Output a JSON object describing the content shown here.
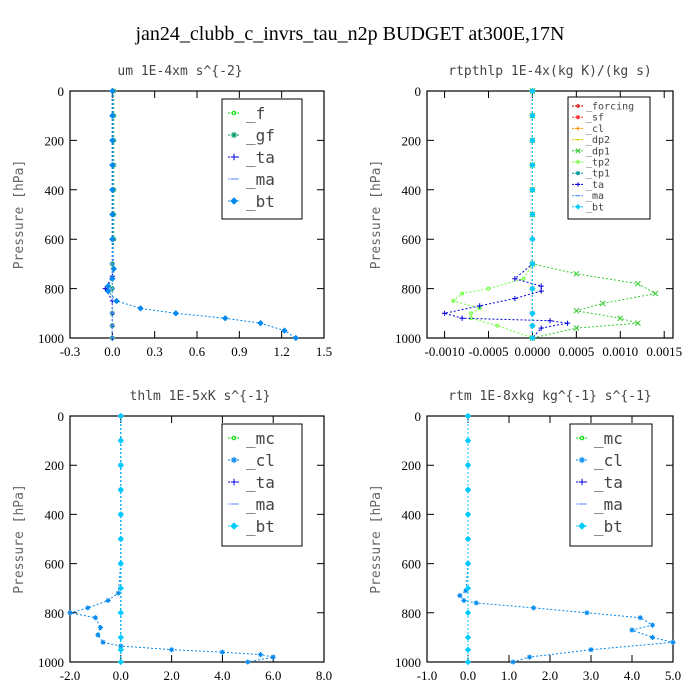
{
  "suptitle": "jan24_clubb_c_invrs_tau_n2p  BUDGET at300E,17N",
  "chart_data": [
    {
      "type": "line",
      "title": "um  1E-4xm s^{-2}",
      "ylabel": "Pressure [hPa]",
      "xlim": [
        -0.3,
        1.5
      ],
      "xticks": [
        -0.3,
        0.0,
        0.3,
        0.6,
        0.9,
        1.2,
        1.5
      ],
      "xtick_labels": [
        "-0.3",
        "0.0",
        "0.3",
        "0.6",
        "0.9",
        "1.2",
        "1.5"
      ],
      "ylim": [
        1000,
        0
      ],
      "yticks": [
        0,
        200,
        400,
        600,
        800,
        1000
      ],
      "legend": "top-right",
      "series": [
        {
          "name": "_f",
          "color": "#00dd00",
          "marker": "circle",
          "x": [
            0,
            0,
            0,
            0,
            0,
            0,
            0,
            0,
            0,
            0,
            0,
            0
          ],
          "y": [
            0,
            100,
            200,
            300,
            400,
            500,
            600,
            700,
            800,
            900,
            950,
            1000
          ]
        },
        {
          "name": "_gf",
          "color": "#009966",
          "marker": "star",
          "x": [
            0.01,
            0.01,
            0.01,
            0.01,
            0.01,
            0.01,
            0.01,
            0.0,
            0.0,
            0.0,
            0.0,
            0.0
          ],
          "y": [
            0,
            100,
            200,
            300,
            400,
            500,
            600,
            700,
            800,
            900,
            950,
            1000
          ]
        },
        {
          "name": "_ta",
          "color": "#0000dd",
          "marker": "plus",
          "x": [
            0,
            0,
            0,
            0,
            0,
            0,
            0,
            0.0,
            -0.05,
            0.0,
            0.0,
            0.0,
            0.0
          ],
          "y": [
            0,
            100,
            200,
            300,
            400,
            500,
            600,
            750,
            800,
            850,
            900,
            950,
            1000
          ]
        },
        {
          "name": "_ma",
          "color": "#6699ff",
          "marker": "dash",
          "x": [
            0,
            0,
            0,
            0,
            0,
            0,
            0,
            0,
            0,
            0,
            0,
            0
          ],
          "y": [
            0,
            100,
            200,
            300,
            400,
            500,
            600,
            700,
            800,
            900,
            950,
            1000
          ]
        },
        {
          "name": "_bt",
          "color": "#0088ee",
          "marker": "diamond",
          "x": [
            0.0,
            0.0,
            0.0,
            0.0,
            0.0,
            0.0,
            0.0,
            0.01,
            0.0,
            -0.03,
            -0.03,
            0.03,
            0.2,
            0.45,
            0.8,
            1.05,
            1.22,
            1.3
          ],
          "y": [
            0,
            100,
            200,
            300,
            400,
            500,
            600,
            720,
            760,
            790,
            810,
            850,
            880,
            900,
            920,
            940,
            970,
            1000
          ]
        }
      ]
    },
    {
      "type": "line",
      "title": "rtpthlp  1E-4x(kg K)/(kg s)",
      "ylabel": "Pressure [hPa]",
      "xlim": [
        -0.0012,
        0.0016
      ],
      "xticks": [
        -0.001,
        -0.0005,
        0.0,
        0.0005,
        0.001,
        0.0015
      ],
      "xtick_labels": [
        "-0.0010",
        "-0.0005",
        "0.0000",
        "0.0005",
        "0.0010",
        "0.0015"
      ],
      "ylim": [
        1000,
        0
      ],
      "yticks": [
        0,
        200,
        400,
        600,
        800,
        1000
      ],
      "legend": "top-right",
      "series": [
        {
          "name": "_forcing",
          "color": "#cc0000",
          "marker": "circle",
          "x": [
            0,
            0,
            0,
            0,
            0,
            0,
            0,
            0,
            0,
            0,
            0,
            0
          ],
          "y": [
            0,
            100,
            200,
            300,
            400,
            500,
            600,
            700,
            800,
            900,
            950,
            1000
          ]
        },
        {
          "name": "_sf",
          "color": "#ff3333",
          "marker": "star",
          "x": [
            0,
            0,
            0,
            0,
            0,
            0,
            0,
            0,
            0,
            0,
            0,
            0
          ],
          "y": [
            0,
            100,
            200,
            300,
            400,
            500,
            600,
            700,
            800,
            900,
            950,
            1000
          ]
        },
        {
          "name": "_cl",
          "color": "#ff9900",
          "marker": "plus",
          "x": [
            0,
            0,
            0,
            0,
            0,
            0,
            0,
            0,
            0,
            0,
            0,
            0
          ],
          "y": [
            0,
            100,
            200,
            300,
            400,
            500,
            600,
            700,
            800,
            900,
            950,
            1000
          ]
        },
        {
          "name": "_dp2",
          "color": "#ddcc00",
          "marker": "dash",
          "x": [
            0,
            0,
            0,
            0,
            0,
            0,
            0,
            0,
            0,
            0,
            0,
            0
          ],
          "y": [
            0,
            100,
            200,
            300,
            400,
            500,
            600,
            700,
            800,
            900,
            950,
            1000
          ]
        },
        {
          "name": "_dp1",
          "color": "#33cc33",
          "marker": "cross",
          "x": [
            0,
            0,
            0,
            0,
            0,
            0,
            0.0,
            0.0005,
            0.0012,
            0.0014,
            0.0008,
            0.0005,
            0.001,
            0.0012,
            0.0005,
            0.0
          ],
          "y": [
            0,
            100,
            200,
            300,
            400,
            500,
            700,
            740,
            780,
            820,
            860,
            890,
            920,
            940,
            960,
            1000
          ]
        },
        {
          "name": "_tp2",
          "color": "#66ff33",
          "marker": "circle",
          "x": [
            0,
            0,
            0,
            0,
            0,
            0,
            0.0,
            -0.0001,
            -0.0005,
            -0.0008,
            -0.0009,
            -0.0006,
            -0.0007,
            -0.0007,
            -0.0004,
            0.0
          ],
          "y": [
            0,
            100,
            200,
            300,
            400,
            500,
            700,
            760,
            800,
            820,
            850,
            880,
            900,
            920,
            950,
            1000
          ]
        },
        {
          "name": "_tp1",
          "color": "#009999",
          "marker": "star",
          "x": [
            0,
            0,
            0,
            0,
            0,
            0,
            0,
            0,
            0,
            0,
            0,
            0
          ],
          "y": [
            0,
            100,
            200,
            300,
            400,
            500,
            600,
            700,
            800,
            900,
            950,
            1000
          ]
        },
        {
          "name": "_ta",
          "color": "#0000dd",
          "marker": "plus",
          "x": [
            0,
            0,
            0,
            0,
            0,
            0,
            0.0,
            -0.0002,
            0.0001,
            0.0001,
            -0.0002,
            -0.0006,
            -0.001,
            -0.0008,
            0.0002,
            0.0004,
            0.0001,
            0.0
          ],
          "y": [
            0,
            100,
            200,
            300,
            400,
            500,
            700,
            760,
            790,
            810,
            840,
            870,
            900,
            920,
            930,
            940,
            960,
            1000
          ]
        },
        {
          "name": "_ma",
          "color": "#6699ff",
          "marker": "dash",
          "x": [
            0,
            0,
            0,
            0,
            0,
            0,
            0,
            0,
            0,
            0,
            0,
            0
          ],
          "y": [
            0,
            100,
            200,
            300,
            400,
            500,
            600,
            700,
            800,
            900,
            950,
            1000
          ]
        },
        {
          "name": "_bt",
          "color": "#00ccff",
          "marker": "diamond",
          "x": [
            0,
            0,
            0,
            0,
            0,
            0,
            0,
            0,
            0,
            0,
            0,
            0
          ],
          "y": [
            0,
            100,
            200,
            300,
            400,
            500,
            600,
            700,
            800,
            900,
            950,
            1000
          ]
        }
      ]
    },
    {
      "type": "line",
      "title": "thlm  1E-5xK s^{-1}",
      "ylabel": "Pressure [hPa]",
      "xlim": [
        -2.0,
        8.0
      ],
      "xticks": [
        -2.0,
        0.0,
        2.0,
        4.0,
        6.0,
        8.0
      ],
      "xtick_labels": [
        "-2.0",
        "0.0",
        "2.0",
        "4.0",
        "6.0",
        "8.0"
      ],
      "ylim": [
        1000,
        0
      ],
      "yticks": [
        0,
        200,
        400,
        600,
        800,
        1000
      ],
      "legend": "top-right",
      "series": [
        {
          "name": "_mc",
          "color": "#00dd00",
          "marker": "circle",
          "x": [
            0,
            0,
            0,
            0,
            0,
            0,
            0,
            0,
            0,
            0,
            0,
            0
          ],
          "y": [
            0,
            100,
            200,
            300,
            400,
            500,
            600,
            700,
            800,
            900,
            950,
            1000
          ]
        },
        {
          "name": "_cl",
          "color": "#0088ee",
          "marker": "star",
          "x": [
            0.0,
            0.0,
            0.0,
            0.0,
            0.0,
            0.0,
            0.0,
            -0.1,
            -0.5,
            -1.3,
            -2.0,
            -1.0,
            -0.8,
            -0.9,
            -0.7,
            0.0,
            2.0,
            4.0,
            5.5,
            6.0,
            5.0
          ],
          "y": [
            0,
            100,
            200,
            300,
            400,
            500,
            600,
            720,
            750,
            780,
            800,
            820,
            860,
            890,
            920,
            935,
            950,
            960,
            970,
            980,
            1000
          ]
        },
        {
          "name": "_ta",
          "color": "#0000dd",
          "marker": "plus",
          "x": [
            0,
            0,
            0,
            0,
            0,
            0,
            0,
            0,
            0,
            0,
            0,
            0
          ],
          "y": [
            0,
            100,
            200,
            300,
            400,
            500,
            600,
            700,
            800,
            900,
            950,
            1000
          ]
        },
        {
          "name": "_ma",
          "color": "#6699ff",
          "marker": "dash",
          "x": [
            0,
            0,
            0,
            0,
            0,
            0,
            0,
            0,
            0,
            0,
            0,
            0
          ],
          "y": [
            0,
            100,
            200,
            300,
            400,
            500,
            600,
            700,
            800,
            900,
            950,
            1000
          ]
        },
        {
          "name": "_bt",
          "color": "#00ccff",
          "marker": "diamond",
          "x": [
            0,
            0,
            0,
            0,
            0,
            0,
            0,
            0,
            0,
            0,
            0,
            0
          ],
          "y": [
            0,
            100,
            200,
            300,
            400,
            500,
            600,
            700,
            800,
            900,
            950,
            1000
          ]
        }
      ]
    },
    {
      "type": "line",
      "title": "rtm  1E-8xkg kg^{-1} s^{-1}",
      "ylabel": "Pressure [hPa]",
      "xlim": [
        -1.0,
        5.0
      ],
      "xticks": [
        -1.0,
        0.0,
        1.0,
        2.0,
        3.0,
        4.0,
        5.0
      ],
      "xtick_labels": [
        "-1.0",
        "0.0",
        "1.0",
        "2.0",
        "3.0",
        "4.0",
        "5.0"
      ],
      "ylim": [
        1000,
        0
      ],
      "yticks": [
        0,
        200,
        400,
        600,
        800,
        1000
      ],
      "legend": "top-right",
      "series": [
        {
          "name": "_mc",
          "color": "#00dd00",
          "marker": "circle",
          "x": [
            0,
            0,
            0,
            0,
            0,
            0,
            0,
            0,
            0,
            0,
            0,
            0
          ],
          "y": [
            0,
            100,
            200,
            300,
            400,
            500,
            600,
            700,
            800,
            900,
            950,
            1000
          ]
        },
        {
          "name": "_cl",
          "color": "#0088ee",
          "marker": "star",
          "x": [
            0.0,
            0.0,
            0.0,
            0.0,
            0.0,
            0.0,
            0.0,
            -0.05,
            -0.2,
            -0.1,
            0.2,
            1.6,
            2.9,
            4.2,
            4.5,
            4.0,
            4.5,
            5.0,
            3.0,
            1.5,
            1.1
          ],
          "y": [
            0,
            100,
            200,
            300,
            400,
            500,
            600,
            710,
            730,
            750,
            760,
            780,
            800,
            820,
            850,
            870,
            900,
            920,
            950,
            980,
            1000
          ]
        },
        {
          "name": "_ta",
          "color": "#0000dd",
          "marker": "plus",
          "x": [
            0,
            0,
            0,
            0,
            0,
            0,
            0,
            0,
            0,
            0,
            0,
            0
          ],
          "y": [
            0,
            100,
            200,
            300,
            400,
            500,
            600,
            700,
            800,
            900,
            950,
            1000
          ]
        },
        {
          "name": "_ma",
          "color": "#6699ff",
          "marker": "dash",
          "x": [
            0,
            0,
            0,
            0,
            0,
            0,
            0,
            0,
            0,
            0,
            0,
            0
          ],
          "y": [
            0,
            100,
            200,
            300,
            400,
            500,
            600,
            700,
            800,
            900,
            950,
            1000
          ]
        },
        {
          "name": "_bt",
          "color": "#00ccff",
          "marker": "diamond",
          "x": [
            0,
            0,
            0,
            0,
            0,
            0,
            0,
            0,
            0,
            0,
            0,
            0
          ],
          "y": [
            0,
            100,
            200,
            300,
            400,
            500,
            600,
            700,
            800,
            900,
            950,
            1000
          ]
        }
      ]
    }
  ]
}
